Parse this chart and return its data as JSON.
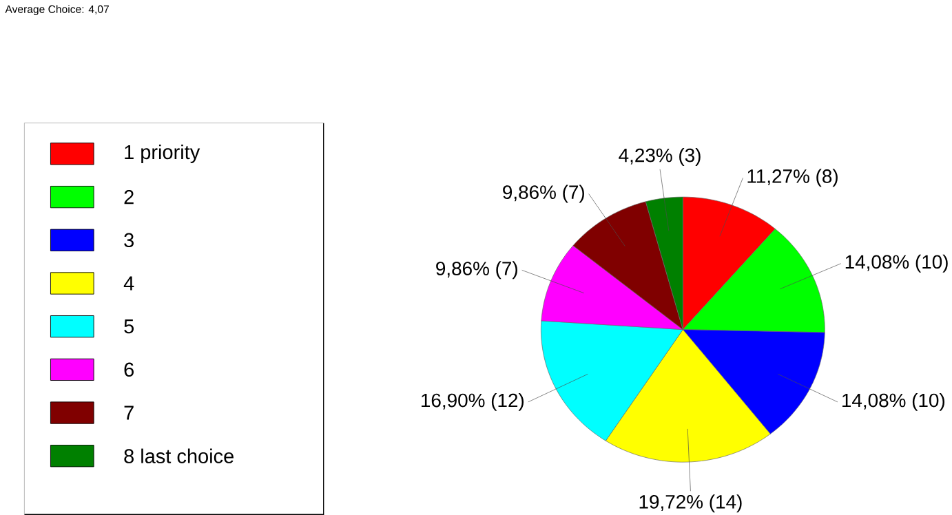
{
  "chart_data": {
    "type": "pie",
    "annotations": [
      "Average Choice: 4,07"
    ],
    "categories": [
      "1 priority",
      "2",
      "3",
      "4",
      "5",
      "6",
      "7",
      "8 last choice"
    ],
    "values": [
      8,
      10,
      10,
      14,
      12,
      7,
      7,
      3
    ],
    "value_labels": [
      "11,27% (8)",
      "14,08% (10)",
      "14,08% (10)",
      "19,72% (14)",
      "16,90% (12)",
      "9,86% (7)",
      "9,86% (7)",
      "4,23% (3)"
    ],
    "colors": [
      "#ff0000",
      "#00ff00",
      "#0000ff",
      "#ffff00",
      "#00ffff",
      "#ff00ff",
      "#800000",
      "#008000"
    ],
    "legend": "left"
  }
}
